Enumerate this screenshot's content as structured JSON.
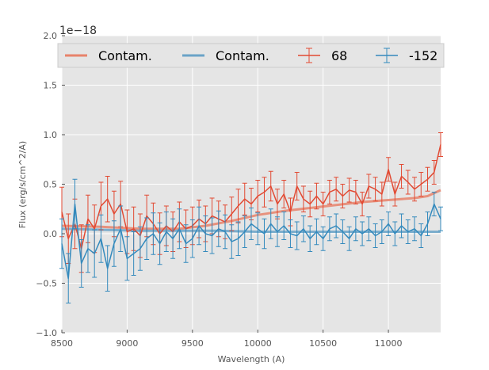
{
  "chart_data": {
    "type": "line",
    "offset_label": "1e−18",
    "xlabel": "Wavelength (A)",
    "ylabel": "Flux (erg/s/cm^2/A)",
    "xlim": [
      8500,
      11400
    ],
    "ylim": [
      -1.0,
      2.0
    ],
    "x_ticks": [
      8500,
      9000,
      9500,
      10000,
      10500,
      11000
    ],
    "x_tick_labels": [
      "8500",
      "9000",
      "9500",
      "10000",
      "10500",
      "11000"
    ],
    "y_ticks": [
      -1.0,
      -0.5,
      0.0,
      0.5,
      1.0,
      1.5,
      2.0
    ],
    "y_tick_labels": [
      "−1.0",
      "−0.5",
      "0.0",
      "0.5",
      "1.0",
      "1.5",
      "2.0"
    ],
    "grid": true,
    "legend_placement": "top",
    "legend": [
      {
        "label": "Contam.",
        "kind": "line",
        "color": "#e8836b"
      },
      {
        "label": "Contam.",
        "kind": "line",
        "color": "#6aa3c8"
      },
      {
        "label": "68",
        "kind": "errorbar",
        "color": "#e24a33"
      },
      {
        "label": "-152",
        "kind": "errorbar",
        "color": "#348abd"
      }
    ],
    "series": [
      {
        "name": "Contam.",
        "role": "contamination",
        "color": "#e8836b",
        "x": [
          8500,
          8800,
          9100,
          9400,
          9600,
          9800,
          10000,
          10200,
          10400,
          10600,
          10800,
          11000,
          11200,
          11300,
          11400
        ],
        "y": [
          0.08,
          0.07,
          0.05,
          0.05,
          0.08,
          0.13,
          0.19,
          0.23,
          0.26,
          0.29,
          0.32,
          0.34,
          0.36,
          0.38,
          0.44
        ]
      },
      {
        "name": "Contam.",
        "role": "contamination",
        "color": "#6aa3c8",
        "x": [
          8500,
          8800,
          9100,
          9400,
          9700,
          10000,
          10300,
          10600,
          10900,
          11200,
          11400
        ],
        "y": [
          0.05,
          0.04,
          0.03,
          0.03,
          0.03,
          0.02,
          0.02,
          0.02,
          0.02,
          0.02,
          0.02
        ]
      },
      {
        "name": "68",
        "role": "data",
        "color": "#e24a33",
        "x": [
          8500,
          8550,
          8600,
          8650,
          8700,
          8750,
          8800,
          8850,
          8900,
          8950,
          9000,
          9050,
          9100,
          9150,
          9200,
          9250,
          9300,
          9350,
          9400,
          9450,
          9500,
          9550,
          9600,
          9650,
          9700,
          9750,
          9800,
          9850,
          9900,
          9950,
          10000,
          10050,
          10100,
          10150,
          10200,
          10250,
          10300,
          10350,
          10400,
          10450,
          10500,
          10550,
          10600,
          10650,
          10700,
          10750,
          10800,
          10850,
          10900,
          10950,
          11000,
          11050,
          11100,
          11150,
          11200,
          11250,
          11300,
          11350,
          11400
        ],
        "y": [
          0.22,
          -0.05,
          0.1,
          -0.15,
          0.15,
          0.05,
          0.28,
          0.35,
          0.2,
          0.3,
          0.02,
          0.05,
          -0.02,
          0.18,
          0.1,
          0.0,
          0.08,
          0.02,
          0.12,
          0.05,
          0.08,
          0.15,
          0.1,
          0.18,
          0.15,
          0.12,
          0.2,
          0.28,
          0.35,
          0.3,
          0.38,
          0.42,
          0.48,
          0.3,
          0.4,
          0.22,
          0.48,
          0.35,
          0.3,
          0.38,
          0.3,
          0.42,
          0.45,
          0.38,
          0.44,
          0.42,
          0.3,
          0.48,
          0.45,
          0.4,
          0.65,
          0.4,
          0.58,
          0.52,
          0.45,
          0.5,
          0.55,
          0.62,
          0.9
        ],
        "error": [
          0.25,
          0.25,
          0.25,
          0.24,
          0.24,
          0.24,
          0.24,
          0.23,
          0.23,
          0.23,
          0.22,
          0.22,
          0.22,
          0.21,
          0.21,
          0.21,
          0.2,
          0.2,
          0.2,
          0.19,
          0.19,
          0.19,
          0.18,
          0.18,
          0.18,
          0.17,
          0.17,
          0.17,
          0.16,
          0.16,
          0.16,
          0.15,
          0.15,
          0.15,
          0.14,
          0.14,
          0.14,
          0.13,
          0.13,
          0.13,
          0.12,
          0.12,
          0.12,
          0.12,
          0.12,
          0.12,
          0.12,
          0.12,
          0.12,
          0.12,
          0.12,
          0.12,
          0.12,
          0.12,
          0.12,
          0.12,
          0.12,
          0.12,
          0.12
        ]
      },
      {
        "name": "-152",
        "role": "data",
        "color": "#348abd",
        "x": [
          8500,
          8550,
          8600,
          8650,
          8700,
          8750,
          8800,
          8850,
          8900,
          8950,
          9000,
          9050,
          9100,
          9150,
          9200,
          9250,
          9300,
          9350,
          9400,
          9450,
          9500,
          9550,
          9600,
          9650,
          9700,
          9750,
          9800,
          9850,
          9900,
          9950,
          10000,
          10050,
          10100,
          10150,
          10200,
          10250,
          10300,
          10350,
          10400,
          10450,
          10500,
          10550,
          10600,
          10650,
          10700,
          10750,
          10800,
          10850,
          10900,
          10950,
          11000,
          11050,
          11100,
          11150,
          11200,
          11250,
          11300,
          11350,
          11400
        ],
        "y": [
          -0.1,
          -0.45,
          0.3,
          -0.3,
          -0.15,
          -0.2,
          -0.05,
          -0.35,
          -0.1,
          0.05,
          -0.25,
          -0.2,
          -0.15,
          -0.05,
          0.0,
          -0.1,
          0.02,
          -0.05,
          0.05,
          -0.1,
          -0.05,
          0.08,
          0.0,
          -0.02,
          0.05,
          0.02,
          -0.08,
          -0.05,
          0.02,
          0.1,
          0.05,
          0.0,
          0.1,
          0.02,
          0.08,
          0.0,
          -0.02,
          0.05,
          -0.05,
          0.02,
          -0.05,
          0.05,
          0.08,
          0.02,
          -0.05,
          0.05,
          0.0,
          0.05,
          -0.02,
          0.02,
          0.1,
          0.0,
          0.08,
          0.02,
          0.05,
          -0.02,
          0.1,
          0.3,
          0.15
        ],
        "error": [
          0.25,
          0.25,
          0.25,
          0.24,
          0.24,
          0.24,
          0.24,
          0.23,
          0.23,
          0.23,
          0.22,
          0.22,
          0.22,
          0.21,
          0.21,
          0.21,
          0.2,
          0.2,
          0.2,
          0.19,
          0.19,
          0.19,
          0.18,
          0.18,
          0.18,
          0.17,
          0.17,
          0.17,
          0.16,
          0.16,
          0.16,
          0.15,
          0.15,
          0.15,
          0.14,
          0.14,
          0.14,
          0.13,
          0.13,
          0.13,
          0.12,
          0.12,
          0.12,
          0.12,
          0.12,
          0.12,
          0.12,
          0.12,
          0.12,
          0.12,
          0.12,
          0.12,
          0.12,
          0.12,
          0.12,
          0.12,
          0.12,
          0.12,
          0.12
        ]
      }
    ]
  }
}
